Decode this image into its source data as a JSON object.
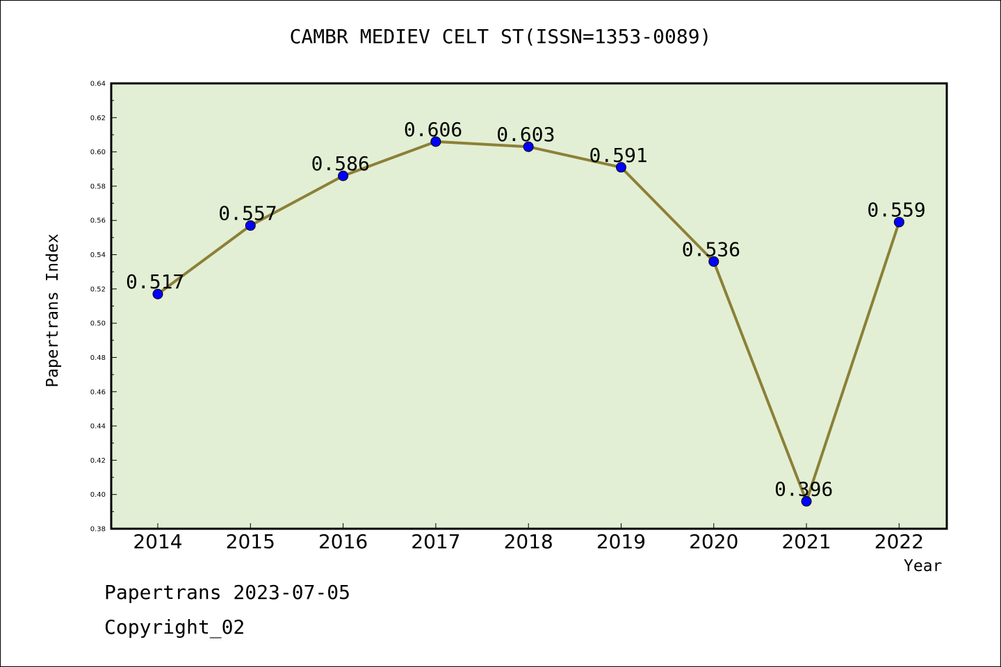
{
  "title": "CAMBR MEDIEV CELT ST(ISSN=1353-0089)",
  "footer": {
    "date_line": "Papertrans 2023-07-05",
    "copyright": "Copyright_02"
  },
  "colors": {
    "plot_background": "#e2efd4",
    "line": "#8c8038",
    "marker": "#0000ff"
  },
  "chart_data": {
    "type": "line",
    "title": "CAMBR MEDIEV CELT ST(ISSN=1353-0089)",
    "xlabel": "Year",
    "ylabel": "Papertrans Index",
    "categories": [
      "2014",
      "2015",
      "2016",
      "2017",
      "2018",
      "2019",
      "2020",
      "2021",
      "2022"
    ],
    "values": [
      0.517,
      0.557,
      0.586,
      0.606,
      0.603,
      0.591,
      0.536,
      0.396,
      0.559
    ],
    "data_labels": [
      "0.517",
      "0.557",
      "0.586",
      "0.606",
      "0.603",
      "0.591",
      "0.536",
      "0.396",
      "0.559"
    ],
    "ylim": [
      0.38,
      0.64
    ],
    "yticks": [
      "0.38",
      "0.40",
      "0.42",
      "0.44",
      "0.46",
      "0.48",
      "0.50",
      "0.52",
      "0.54",
      "0.56",
      "0.58",
      "0.60",
      "0.62",
      "0.64"
    ],
    "grid": false,
    "legend": "none"
  }
}
